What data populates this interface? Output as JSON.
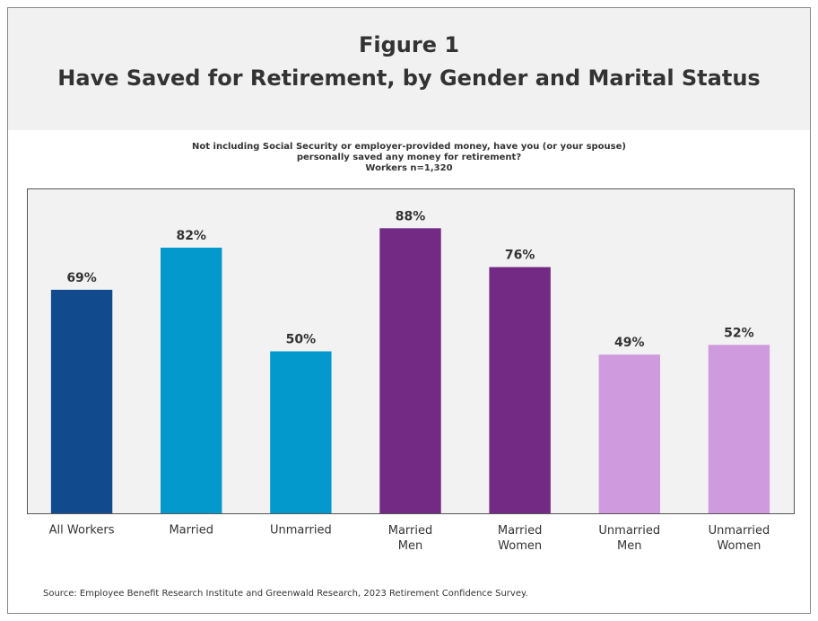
{
  "chart_data": {
    "type": "bar",
    "header": "Figure 1",
    "title": "Have Saved for Retirement, by Gender and Marital Status",
    "subtitle": [
      "Not including Social Security or employer-provided money, have you (or your spouse)",
      "personally saved any money for retirement?",
      "Workers n=1,320"
    ],
    "categories": [
      "All Workers",
      "Married",
      "Unmarried",
      "Married\nMen",
      "Married\nWomen",
      "Unmarried\nMen",
      "Unmarried\nWomen"
    ],
    "values": [
      69,
      82,
      50,
      88,
      76,
      49,
      52
    ],
    "value_labels": [
      "69%",
      "82%",
      "50%",
      "88%",
      "76%",
      "49%",
      "52%"
    ],
    "colors": [
      "#124a8e",
      "#0399cc",
      "#0399cc",
      "#722a84",
      "#722a84",
      "#cf9bde",
      "#cf9bde"
    ],
    "ylim": [
      0,
      100
    ],
    "source": "Source:  Employee Benefit Research Institute and Greenwald Research, 2023 Retirement Confidence Survey."
  }
}
